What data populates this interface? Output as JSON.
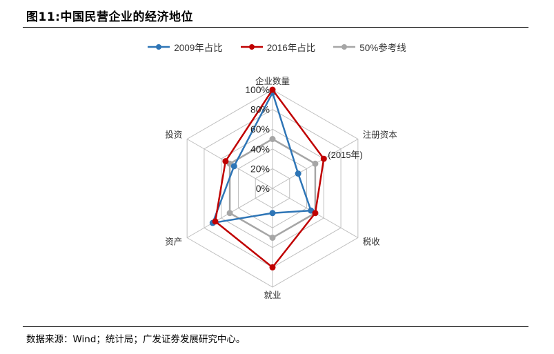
{
  "figure": {
    "title": "图11:中国民营企业的经济地位",
    "source": "数据来源：Wind；统计局；广发证券发展研究中心。"
  },
  "chart_data": {
    "type": "radar",
    "axes": [
      "企业数量",
      "注册资本",
      "税收",
      "就业",
      "资产",
      "投资"
    ],
    "ticks": [
      "0%",
      "20%",
      "40%",
      "60%",
      "80%",
      "100%"
    ],
    "range": [
      0,
      100
    ],
    "series": [
      {
        "name": "2009年占比",
        "color": "#2e75b6",
        "values": [
          97,
          30,
          45,
          25,
          70,
          45
        ]
      },
      {
        "name": "2016年占比",
        "color": "#c00000",
        "values": [
          100,
          60,
          50,
          80,
          67,
          55
        ]
      },
      {
        "name": "50%参考线",
        "color": "#a6a6a6",
        "values": [
          50,
          50,
          50,
          50,
          50,
          50
        ]
      }
    ],
    "annotations": [
      {
        "text": "(2015年)",
        "axis": "注册资本"
      }
    ],
    "grid": true,
    "legend_position": "top"
  }
}
